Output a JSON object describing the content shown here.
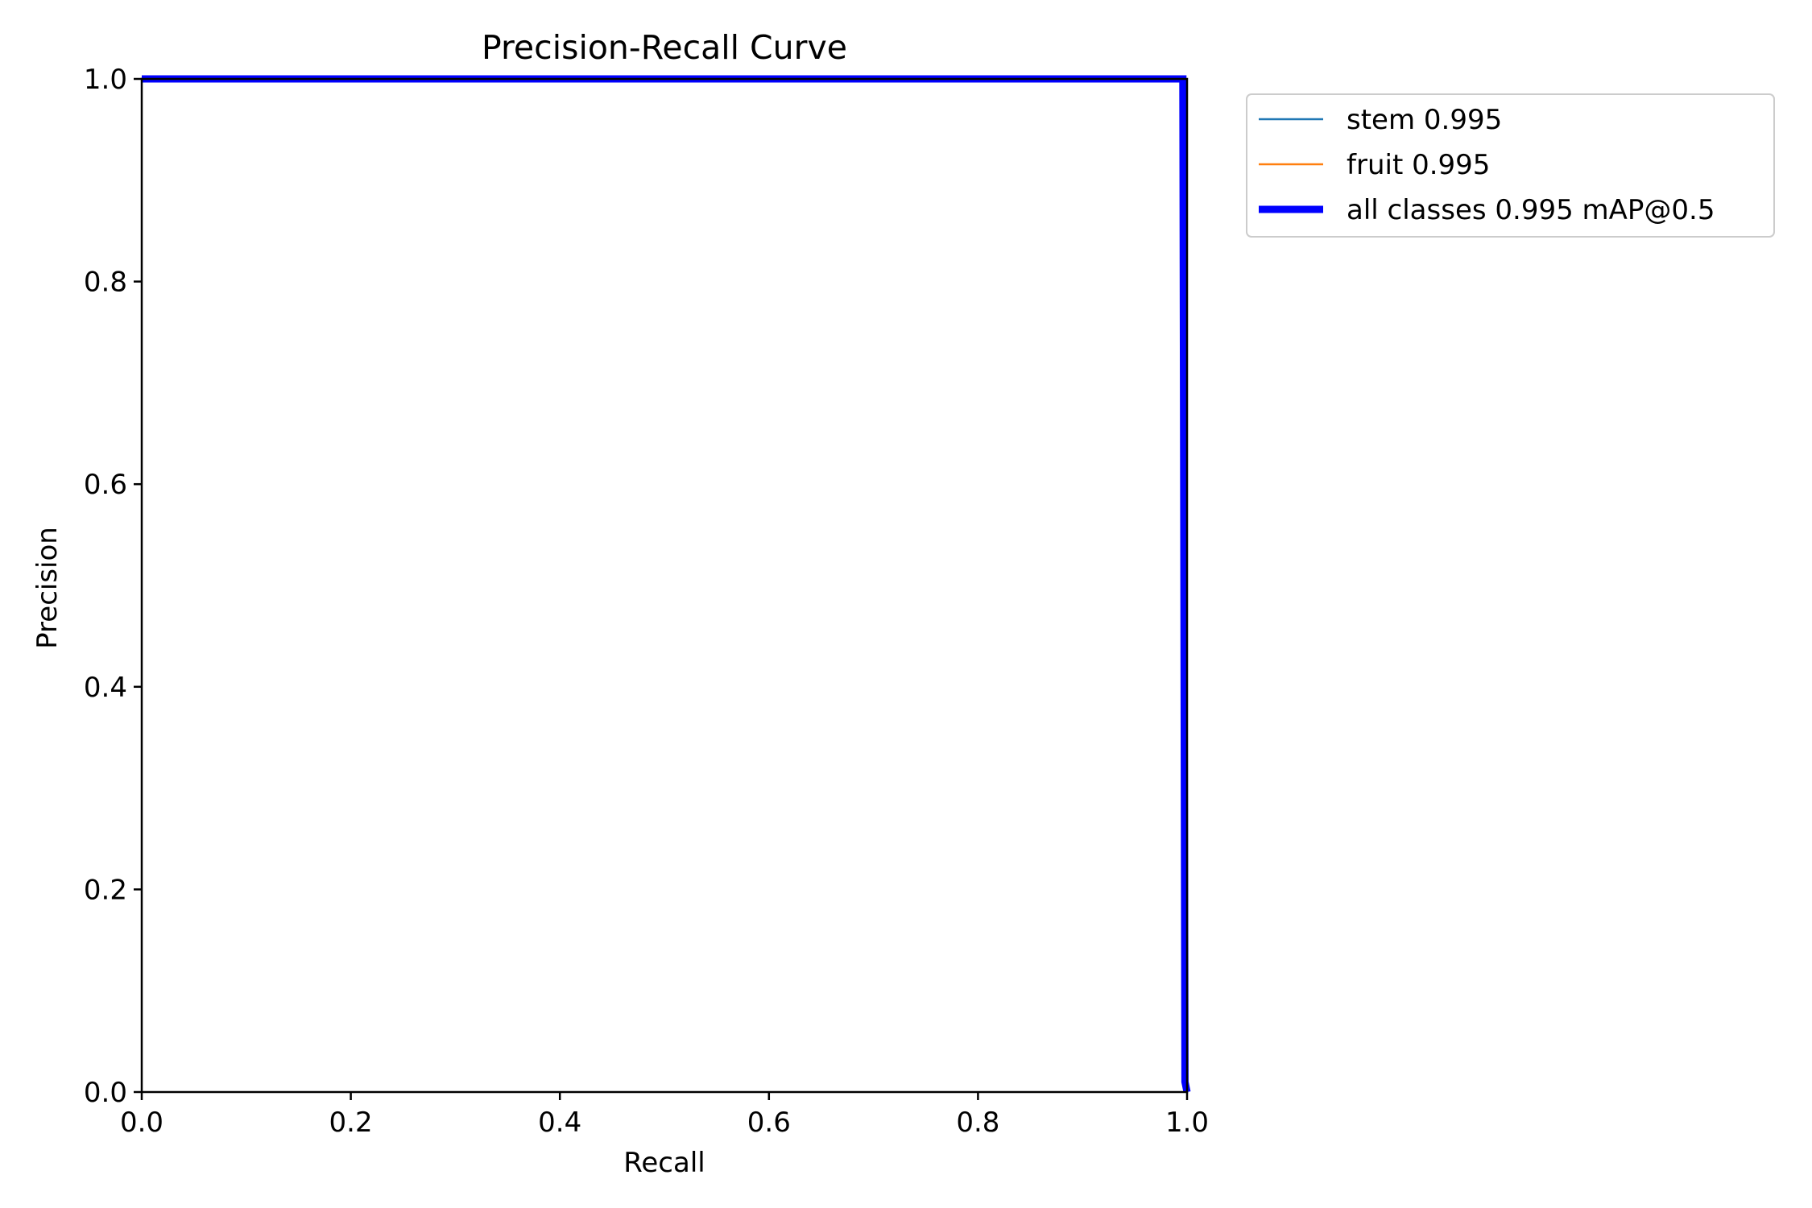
{
  "chart_data": {
    "type": "line",
    "title": "Precision-Recall Curve",
    "xlabel": "Recall",
    "ylabel": "Precision",
    "xlim": [
      0,
      1
    ],
    "ylim": [
      0,
      1
    ],
    "xticks": [
      "0.0",
      "0.2",
      "0.4",
      "0.6",
      "0.8",
      "1.0"
    ],
    "yticks": [
      "0.0",
      "0.2",
      "0.4",
      "0.6",
      "0.8",
      "1.0"
    ],
    "grid": false,
    "legend_position": "outside-upper-right",
    "series": [
      {
        "name": "stem 0.995",
        "color": "#1f77b4",
        "x": [
          0,
          0.996,
          0.998,
          1.0
        ],
        "y": [
          1,
          1,
          0.01,
          0
        ]
      },
      {
        "name": "fruit 0.995",
        "color": "#ff7f0e",
        "x": [
          0,
          0.996,
          0.998,
          1.0
        ],
        "y": [
          1,
          1,
          0.01,
          0
        ]
      },
      {
        "name": "all classes 0.995 mAP@0.5",
        "color": "#0000ff",
        "bold": true,
        "x": [
          0,
          0.996,
          0.998,
          1.0
        ],
        "y": [
          1,
          1,
          0.01,
          0
        ]
      }
    ]
  }
}
